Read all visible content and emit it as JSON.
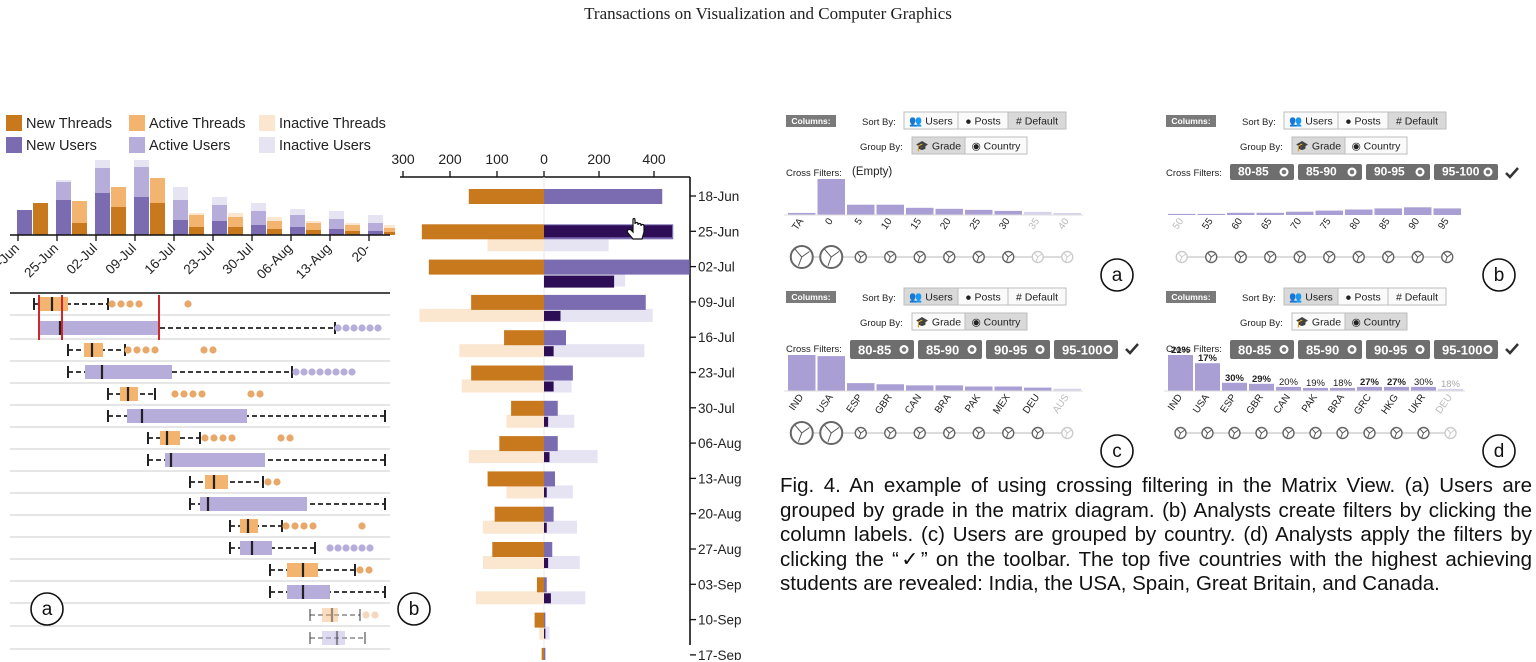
{
  "journal_header": "Transactions on Visualization and Computer Graphics",
  "legend": {
    "new_threads": "New Threads",
    "active_threads": "Active Threads",
    "inactive_threads": "Inactive Threads",
    "new_users": "New Users",
    "active_users": "Active Users",
    "inactive_users": "Inactive Users"
  },
  "colors": {
    "new_threads": "#c8791e",
    "active_threads": "#f2b46e",
    "inactive_threads": "#fbe6cf",
    "new_users": "#7b6bb0",
    "active_users": "#b6addb",
    "inactive_users": "#e6e3f3",
    "dark_purple": "#2e0d57",
    "toolbar_dark": "#7a7a7a",
    "filter_chip": "#6e6e6e"
  },
  "panel_a": {
    "label": "a",
    "week_ticks": [
      "18-Jun",
      "25-Jun",
      "02-Jul",
      "09-Jul",
      "16-Jul",
      "23-Jul",
      "30-Jul",
      "06-Aug",
      "13-Aug",
      "20-"
    ]
  },
  "panel_b": {
    "label": "b",
    "axis_ticks": [
      "300",
      "200",
      "100",
      "0",
      "200",
      "400"
    ],
    "week_labels": [
      "18-Jun",
      "25-Jun",
      "02-Jul",
      "09-Jul",
      "16-Jul",
      "23-Jul",
      "30-Jul",
      "06-Aug",
      "13-Aug",
      "20-Aug",
      "27-Aug",
      "03-Sep",
      "10-Sep",
      "17-Sep"
    ]
  },
  "chart_data": {
    "type": "bar",
    "x_axis_ticks": [
      "300",
      "200",
      "100",
      "0",
      "200",
      "400"
    ],
    "categories": [
      "18-Jun",
      "25-Jun",
      "02-Jul",
      "09-Jul",
      "16-Jul",
      "23-Jul",
      "30-Jul",
      "06-Aug",
      "13-Aug",
      "20-Aug",
      "27-Aug",
      "03-Sep",
      "10-Sep",
      "17-Sep"
    ],
    "series": [
      {
        "name": "New Threads",
        "values": [
          160,
          260,
          245,
          155,
          85,
          155,
          70,
          95,
          120,
          105,
          110,
          15,
          20,
          5
        ]
      },
      {
        "name": "Inactive Threads",
        "values": [
          0,
          120,
          0,
          265,
          180,
          175,
          80,
          160,
          80,
          130,
          130,
          145,
          10,
          20
        ]
      },
      {
        "name": "New Users",
        "values": [
          430,
          470,
          530,
          370,
          80,
          105,
          50,
          50,
          40,
          35,
          30,
          10,
          5,
          5
        ]
      },
      {
        "name": "Inactive Users",
        "values": [
          0,
          235,
          295,
          395,
          365,
          100,
          110,
          195,
          105,
          120,
          130,
          150,
          20,
          40
        ]
      }
    ]
  },
  "matrix_panels": [
    {
      "label": "a",
      "columns_label": "Columns:",
      "sort_by": "Sort By:",
      "sort_options": [
        "Users",
        "Posts",
        "Default"
      ],
      "group_by": "Group By:",
      "group_options": [
        "Grade",
        "Country"
      ],
      "cross_filters": "Cross Filters:",
      "empty_text": "(Empty)",
      "filters": [],
      "col_labels": [
        "TA",
        "0",
        "5",
        "10",
        "15",
        "20",
        "25",
        "30",
        "35",
        "40"
      ],
      "bar_values": [
        2,
        35,
        10,
        10,
        7,
        6,
        5,
        4,
        3,
        2
      ],
      "percents": []
    },
    {
      "label": "b",
      "columns_label": "Columns:",
      "sort_by": "Sort By:",
      "sort_options": [
        "Users",
        "Posts",
        "Default"
      ],
      "group_by": "Group By:",
      "group_options": [
        "Grade",
        "Country"
      ],
      "cross_filters": "Cross Filters:",
      "empty_text": "",
      "filters": [
        "80-85",
        "85-90",
        "90-95",
        "95-100"
      ],
      "col_labels": [
        "50",
        "55",
        "60",
        "65",
        "70",
        "75",
        "80",
        "85",
        "90",
        "95"
      ],
      "bar_values": [
        1,
        1,
        2,
        2,
        3,
        4,
        5,
        6,
        7,
        6
      ],
      "percents": []
    },
    {
      "label": "c",
      "columns_label": "Columns:",
      "sort_by": "Sort By:",
      "sort_options": [
        "Users",
        "Posts",
        "Default"
      ],
      "group_by": "Group By:",
      "group_options": [
        "Grade",
        "Country"
      ],
      "cross_filters": "Cross Filters:",
      "empty_text": "",
      "filters": [
        "80-85",
        "85-90",
        "90-95",
        "95-100"
      ],
      "col_labels": [
        "IND",
        "USA",
        "ESP",
        "GBR",
        "CAN",
        "BRA",
        "PAK",
        "MEX",
        "DEU",
        "AUS"
      ],
      "bar_values": [
        32,
        31,
        7,
        6,
        5,
        5,
        4,
        4,
        3,
        2
      ],
      "percents": []
    },
    {
      "label": "d",
      "columns_label": "Columns:",
      "sort_by": "Sort By:",
      "sort_options": [
        "Users",
        "Posts",
        "Default"
      ],
      "group_by": "Group By:",
      "group_options": [
        "Grade",
        "Country"
      ],
      "cross_filters": "Cross Filters:",
      "empty_text": "",
      "filters": [
        "80-85",
        "85-90",
        "90-95",
        "95-100"
      ],
      "col_labels": [
        "IND",
        "USA",
        "ESP",
        "GBR",
        "CAN",
        "PAK",
        "BRA",
        "GRC",
        "HKG",
        "UKR",
        "DEU"
      ],
      "bar_values": [
        35,
        27,
        8,
        7,
        4,
        3,
        3,
        4,
        4,
        4,
        2
      ],
      "percents": [
        "21%",
        "17%",
        "30%",
        "29%",
        "20%",
        "19%",
        "18%",
        "27%",
        "27%",
        "30%",
        "18%"
      ]
    }
  ],
  "caption": "Fig. 4.  An example of using crossing filtering in the Matrix View.  (a) Users are grouped by grade in the matrix diagram. (b) Analysts create filters by clicking the column labels. (c) Users are grouped by country. (d) Analysts apply the filters by clicking the “✓” on the toolbar. The top five countries with the highest achieving students are revealed: India, the USA, Spain, Great Britain, and Canada."
}
